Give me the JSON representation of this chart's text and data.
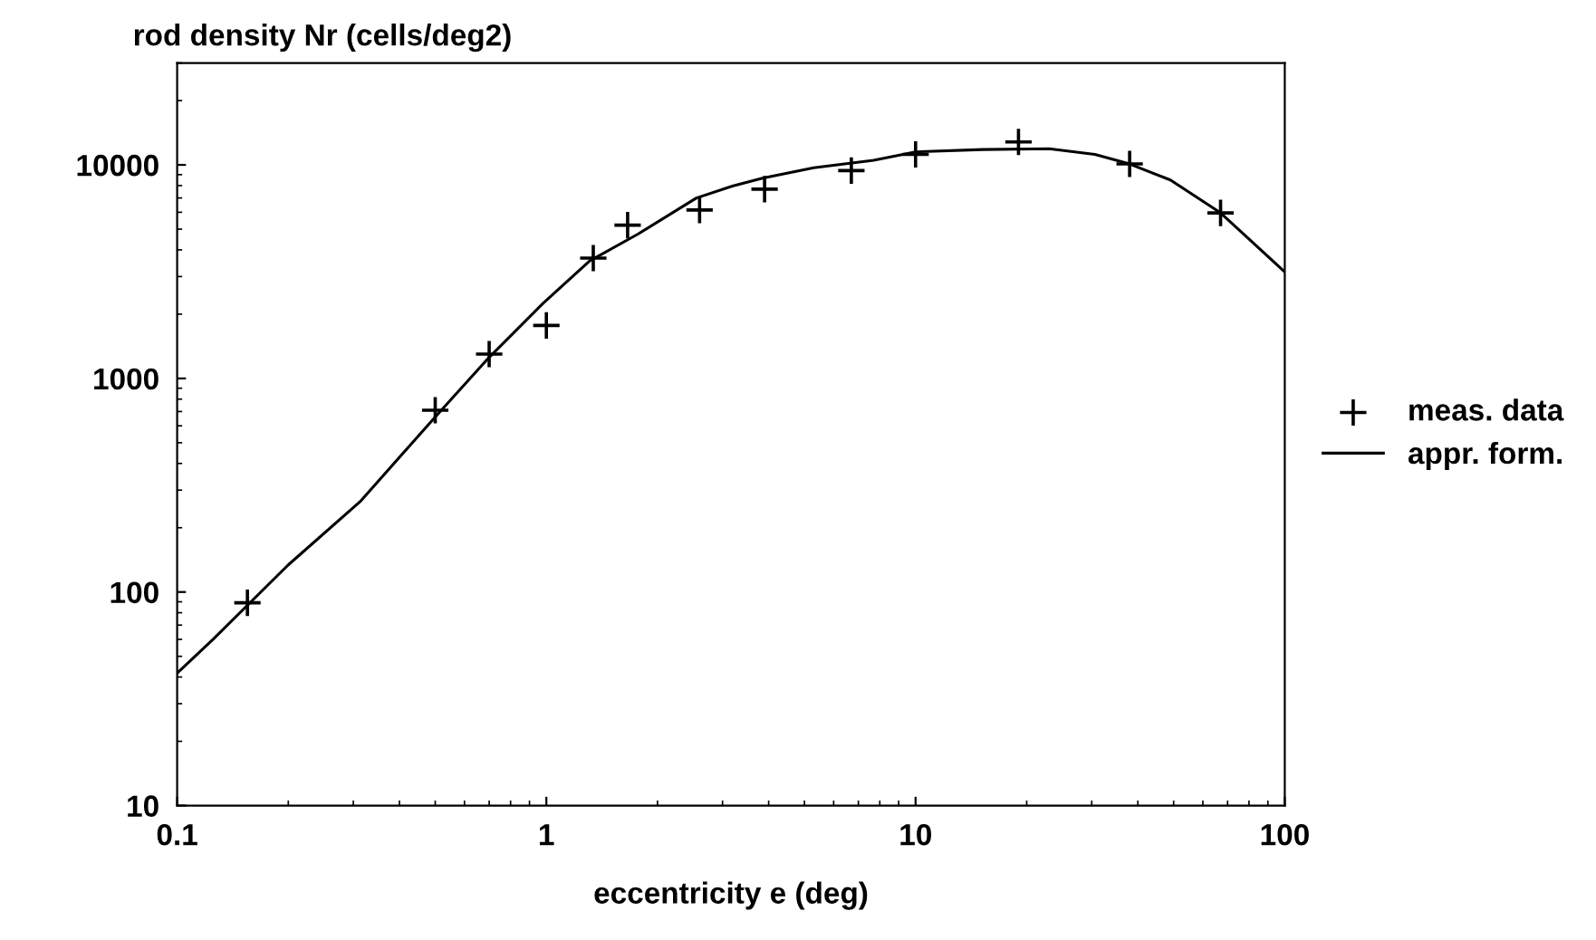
{
  "chart_data": {
    "type": "scatter",
    "ylabel": "rod density Nr (cells/deg2)",
    "xlabel": "eccentricity e (deg)",
    "log": "xy",
    "xlim": [
      0.1,
      100
    ],
    "ylim": [
      10,
      30000
    ],
    "xticks": [
      0.1,
      1,
      10,
      100
    ],
    "yticks": [
      10,
      100,
      1000,
      10000
    ],
    "grid": false,
    "legend": "right",
    "series": [
      {
        "name": "meas. data",
        "marker": "cross",
        "color": "#000000",
        "x": [
          0.155,
          0.5,
          0.7,
          1.0,
          1.34,
          1.66,
          2.6,
          3.9,
          6.7,
          10,
          19,
          38,
          67
        ],
        "values": [
          89,
          710,
          1300,
          1770,
          3660,
          5220,
          6150,
          7700,
          9400,
          11200,
          12800,
          10100,
          5960
        ]
      },
      {
        "name": "appr. form.",
        "type": "line",
        "marker": "none",
        "line_style": "solid",
        "color": "#000000",
        "x": [
          0.1,
          0.125,
          0.2,
          0.313,
          0.49,
          0.7,
          0.98,
          1.31,
          1.77,
          2.55,
          3.19,
          3.85,
          5.3,
          7.7,
          10,
          15.2,
          23,
          30.6,
          38,
          49,
          67,
          100
        ],
        "values": [
          41.7,
          60,
          134,
          265,
          635,
          1256,
          2250,
          3550,
          4740,
          7000,
          7950,
          8660,
          9690,
          10500,
          11500,
          11800,
          11900,
          11200,
          10100,
          8500,
          5960,
          3150
        ]
      }
    ]
  }
}
